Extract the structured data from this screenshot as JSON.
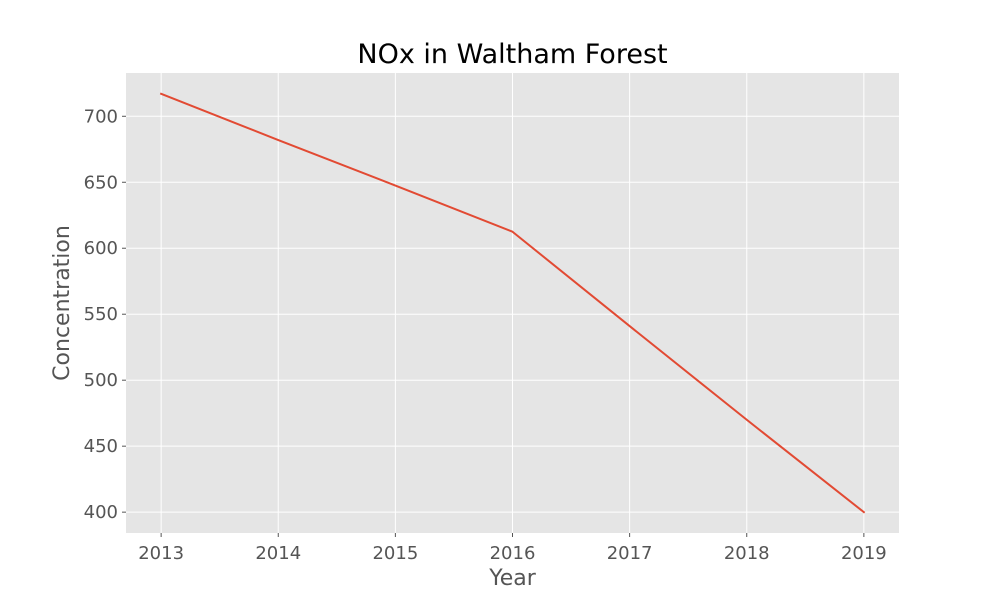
{
  "chart_data": {
    "type": "line",
    "title": "NOx in Waltham Forest",
    "xlabel": "Year",
    "ylabel": "Concentration",
    "x": [
      2013,
      2014,
      2015,
      2016,
      2017,
      2018,
      2019
    ],
    "series": [
      {
        "values": [
          717,
          682,
          647.5,
          612.5,
          541,
          470,
          400
        ],
        "color": "#E24A33"
      }
    ],
    "xticks": [
      "2013",
      "2014",
      "2015",
      "2016",
      "2017",
      "2018",
      "2019"
    ],
    "yticks": [
      "400",
      "450",
      "500",
      "550",
      "600",
      "650",
      "700"
    ],
    "xlim": [
      2012.7,
      2019.3
    ],
    "ylim": [
      384.2,
      732.8
    ],
    "grid": true,
    "colors": {
      "plot_background": "#E5E5E5",
      "grid": "#FFFFFF",
      "tick_text": "#555555"
    }
  }
}
